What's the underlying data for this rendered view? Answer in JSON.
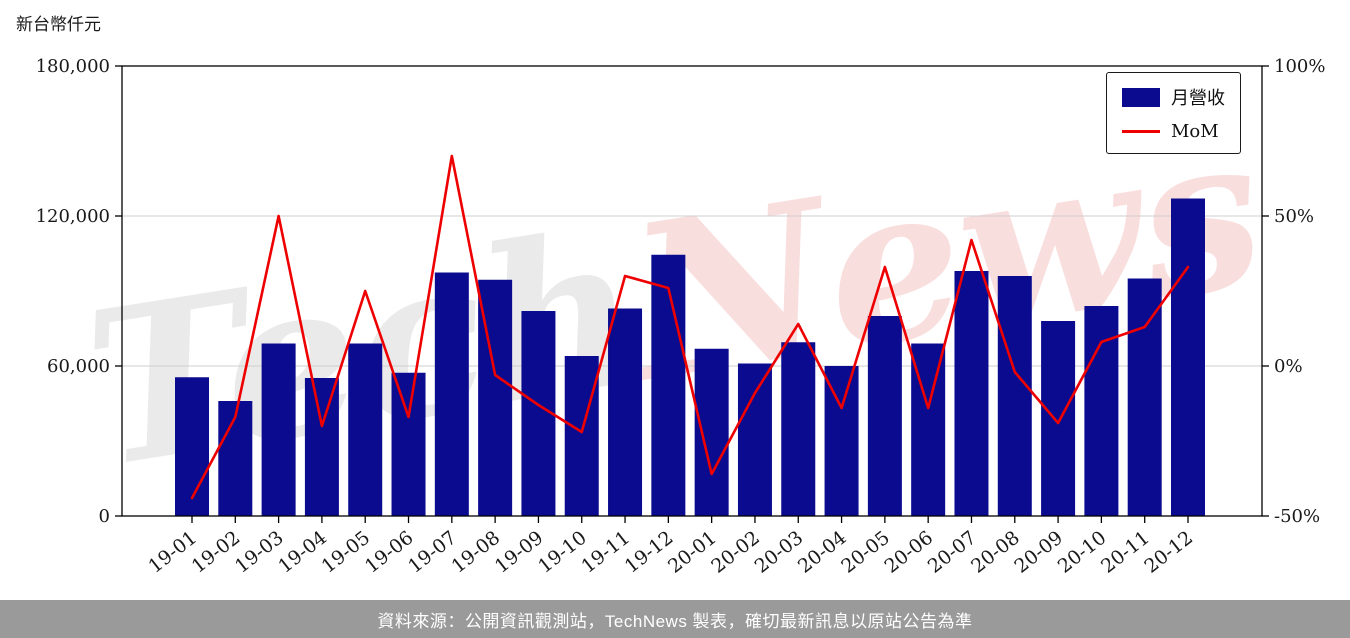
{
  "header": {
    "unit_label": "新台幣仟元"
  },
  "legend": {
    "bar_label": "月營收",
    "line_label": "MoM"
  },
  "watermark": {
    "part1": "Tech",
    "part2": "News"
  },
  "footer": {
    "text": "資料來源：公開資訊觀測站，TechNews 製表，確切最新訊息以原站公告為準"
  },
  "colors": {
    "bar": "#0b0b8f",
    "line": "#ee0000",
    "grid": "#cfcfcf",
    "axis": "#000000",
    "tick_text": "#1a1a1a",
    "footer_bg": "#9a9a9a",
    "watermark_gray": "#8a8a8a",
    "watermark_red": "#e04444"
  },
  "chart_data": {
    "type": "bar+line",
    "title": "",
    "categories": [
      "19-01",
      "19-02",
      "19-03",
      "19-04",
      "19-05",
      "19-06",
      "19-07",
      "19-08",
      "19-09",
      "19-10",
      "19-11",
      "19-12",
      "20-01",
      "20-02",
      "20-03",
      "20-04",
      "20-05",
      "20-06",
      "20-07",
      "20-08",
      "20-09",
      "20-10",
      "20-11",
      "20-12"
    ],
    "series": [
      {
        "name": "月營收",
        "type": "bar",
        "axis": "left",
        "values": [
          55500,
          46000,
          69000,
          55200,
          69000,
          57300,
          97400,
          94500,
          82000,
          64000,
          83000,
          104500,
          66900,
          61000,
          69500,
          60000,
          80000,
          69000,
          98000,
          96000,
          78000,
          84000,
          95000,
          127000
        ]
      },
      {
        "name": "MoM",
        "type": "line",
        "axis": "right",
        "values": [
          -44,
          -17,
          50,
          -20,
          25,
          -17,
          70,
          -3,
          -13,
          -22,
          30,
          26,
          -36,
          -9,
          14,
          -14,
          33,
          -14,
          42,
          -2,
          -19,
          8,
          13,
          33
        ]
      }
    ],
    "left_axis": {
      "label": "新台幣仟元",
      "range": [
        0,
        180000
      ],
      "ticks": [
        0,
        60000,
        120000,
        180000
      ],
      "tick_labels": [
        "0",
        "60,000",
        "120,000",
        "180,000"
      ]
    },
    "right_axis": {
      "label": "",
      "range": [
        -50,
        100
      ],
      "ticks": [
        -50,
        0,
        50,
        100
      ],
      "tick_labels": [
        "-50%",
        "0%",
        "50%",
        "100%"
      ]
    },
    "grid": "horizontal",
    "legend_position": "top-right"
  }
}
